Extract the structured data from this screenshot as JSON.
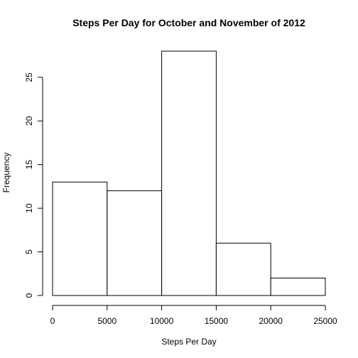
{
  "chart_data": {
    "type": "bar",
    "title": "Steps Per Day for October and November of 2012",
    "xlabel": "Steps Per Day",
    "ylabel": "Frequency",
    "bins": [
      {
        "start": 0,
        "end": 5000,
        "count": 13
      },
      {
        "start": 5000,
        "end": 10000,
        "count": 12
      },
      {
        "start": 10000,
        "end": 15000,
        "count": 28
      },
      {
        "start": 15000,
        "end": 20000,
        "count": 6
      },
      {
        "start": 20000,
        "end": 25000,
        "count": 2
      }
    ],
    "xlim": [
      0,
      25000
    ],
    "ylim": [
      0,
      28
    ],
    "xticks": [
      "0",
      "5000",
      "10000",
      "15000",
      "20000",
      "25000"
    ],
    "yticks": [
      "0",
      "5",
      "10",
      "15",
      "20",
      "25"
    ],
    "bar_fill": "#ffffff",
    "bar_stroke": "#000000",
    "grid": false,
    "legend": "none"
  }
}
